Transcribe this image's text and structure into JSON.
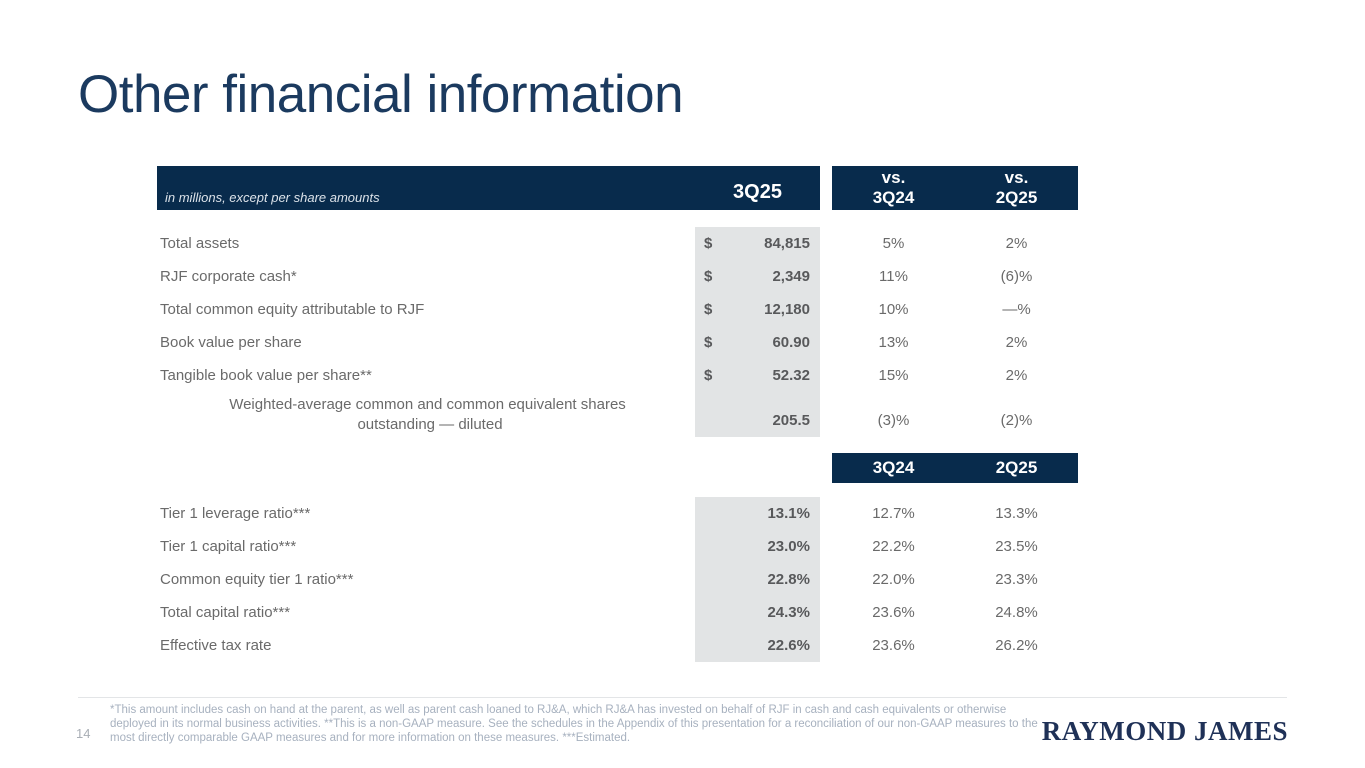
{
  "slide": {
    "title": "Other financial information",
    "page_number": "14",
    "logo_text": "RAYMOND JAMES"
  },
  "table": {
    "header": {
      "note": "in millions, except per share amounts",
      "current_quarter": "3Q25",
      "vs_label": "vs.",
      "vs_quarter_1": "3Q24",
      "vs_quarter_2": "2Q25"
    },
    "subheader": {
      "quarter_1": "3Q24",
      "quarter_2": "2Q25"
    },
    "section1_rows": [
      {
        "label": "Total assets",
        "currency": "$",
        "value": "84,815",
        "vs_3q24": "5%",
        "vs_2q25": "2%"
      },
      {
        "label": "RJF corporate cash*",
        "currency": "$",
        "value": "2,349",
        "vs_3q24": "11%",
        "vs_2q25": "(6)%"
      },
      {
        "label": "Total common equity attributable to RJF",
        "currency": "$",
        "value": "12,180",
        "vs_3q24": "10%",
        "vs_2q25": "—%"
      },
      {
        "label": "Book value per share",
        "currency": "$",
        "value": "60.90",
        "vs_3q24": "13%",
        "vs_2q25": "2%"
      },
      {
        "label": "Tangible book value per share**",
        "currency": "$",
        "value": "52.32",
        "vs_3q24": "15%",
        "vs_2q25": "2%"
      },
      {
        "label_line1": "Weighted-average common and common equivalent shares",
        "label_line2": "outstanding — diluted",
        "currency": "",
        "value": "205.5",
        "vs_3q24": "(3)%",
        "vs_2q25": "(2)%"
      }
    ],
    "section2_rows": [
      {
        "label": "Tier 1 leverage ratio***",
        "value": "13.1%",
        "q_3q24": "12.7%",
        "q_2q25": "13.3%"
      },
      {
        "label": "Tier 1 capital ratio***",
        "value": "23.0%",
        "q_3q24": "22.2%",
        "q_2q25": "23.5%"
      },
      {
        "label": "Common equity tier 1 ratio***",
        "value": "22.8%",
        "q_3q24": "22.0%",
        "q_2q25": "23.3%"
      },
      {
        "label": "Total capital ratio***",
        "value": "24.3%",
        "q_3q24": "23.6%",
        "q_2q25": "24.8%"
      },
      {
        "label": "Effective tax rate",
        "value": "22.6%",
        "q_3q24": "23.6%",
        "q_2q25": "26.2%"
      }
    ]
  },
  "footnote": "*This amount includes cash on hand at the parent, as well as parent cash loaned to RJ&A, which RJ&A has invested on behalf of RJF in cash and cash equivalents or otherwise deployed in its normal business activities. **This is a non-GAAP measure. See the schedules in the Appendix of this presentation for a reconciliation of our non-GAAP measures to the most directly comparable GAAP measures and for more information on these measures. ***Estimated.",
  "colors": {
    "navy_bar": "#082b4c",
    "title_navy": "#1b3a5f",
    "column_highlight": "#e2e4e5",
    "label_text": "#6a6a6a",
    "value_text": "#58595b",
    "footnote_text": "#a7b1bf",
    "logo_navy": "#1f3157"
  }
}
